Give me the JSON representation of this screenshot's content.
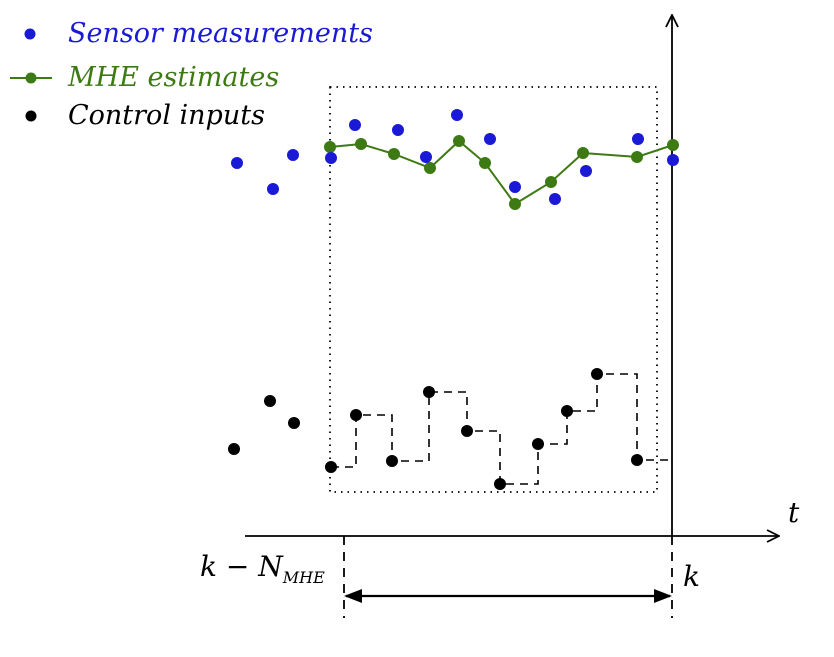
{
  "colors": {
    "sensor": "#1a1ad6",
    "mhe": "#3e7a14",
    "control": "#000000"
  },
  "legend": {
    "sensor_label": "Sensor measurements",
    "mhe_label": "MHE estimates",
    "control_label": "Control inputs"
  },
  "axis": {
    "t_label": "t",
    "k_label": "k",
    "window_start_base": "k − N",
    "window_start_sub": "MHE"
  }
}
